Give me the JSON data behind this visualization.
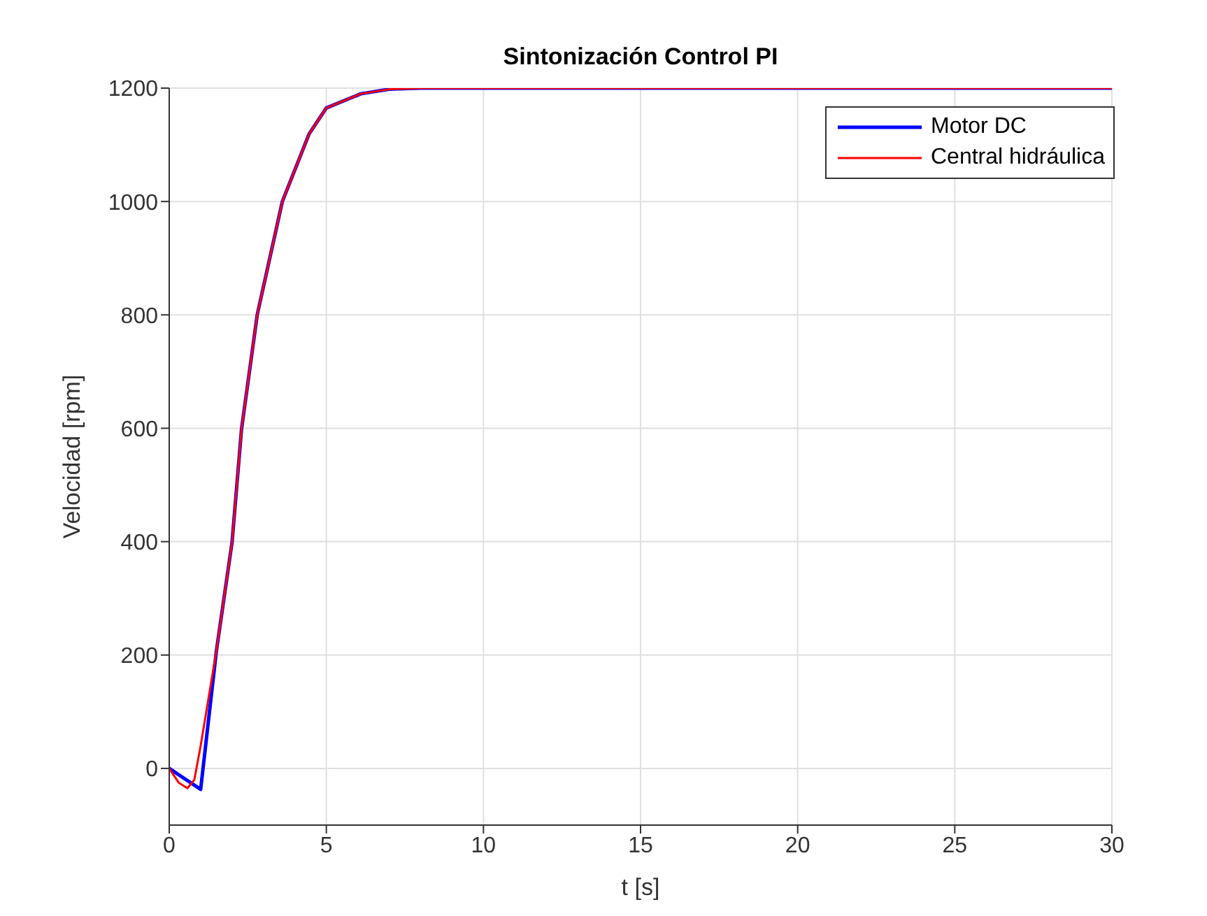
{
  "chart_data": {
    "type": "line",
    "title": "Sintonización Control PI",
    "xlabel": "t [s]",
    "ylabel": "Velocidad [rpm]",
    "xlim": [
      0,
      30
    ],
    "xticks": [
      0,
      5,
      10,
      15,
      20,
      25,
      30
    ],
    "ylim": [
      -100,
      1200
    ],
    "yticks": [
      0,
      200,
      400,
      600,
      800,
      1000,
      1200
    ],
    "grid": true,
    "legend": "top right",
    "line_style": "solid",
    "marker": "none",
    "series": [
      {
        "name": "Motor DC",
        "color": "#0000ff",
        "x": [
          0,
          1,
          1.5,
          2,
          2.3,
          2.8,
          3.6,
          4.45,
          5,
          6.1,
          7,
          8,
          10,
          15,
          20,
          30
        ],
        "values": [
          0,
          -37,
          207,
          399,
          598,
          800,
          1000,
          1119,
          1165,
          1190,
          1198,
          1200,
          1200,
          1200,
          1200,
          1200
        ]
      },
      {
        "name": "Central hidráulica",
        "color": "#ff0000",
        "x": [
          0,
          0.3,
          0.58,
          0.8,
          1,
          1.5,
          2,
          2.3,
          2.8,
          3.6,
          4.45,
          5,
          6.1,
          7,
          8,
          10,
          15,
          20,
          30
        ],
        "values": [
          0,
          -25,
          -35,
          -20,
          40,
          207,
          399,
          598,
          800,
          1000,
          1119,
          1165,
          1190,
          1198,
          1200,
          1200,
          1200,
          1200,
          1200
        ]
      }
    ]
  }
}
